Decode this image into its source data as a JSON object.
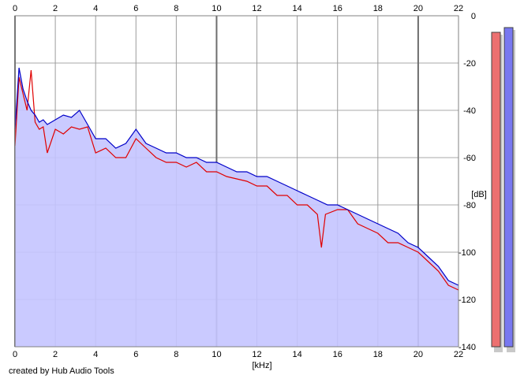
{
  "chart_data": {
    "type": "area",
    "title": "",
    "xlabel": "[kHz]",
    "ylabel": "[dB]",
    "xlim": [
      0,
      22
    ],
    "ylim": [
      -140,
      0
    ],
    "x_ticks": [
      0,
      2,
      4,
      6,
      8,
      10,
      12,
      14,
      16,
      18,
      20,
      22
    ],
    "x_tick_labels": [
      "0",
      "2",
      "4",
      "6",
      "8",
      "10",
      "12",
      "14",
      "16",
      "18",
      "20",
      "22"
    ],
    "y_ticks": [
      0,
      -20,
      -40,
      -60,
      -80,
      -100,
      -120,
      -140
    ],
    "y_tick_labels": [
      "0",
      "-20",
      "-40",
      "-60",
      "-80",
      "-100",
      "-120",
      "-140"
    ],
    "grid": true,
    "series": [
      {
        "color": "#e00000",
        "points": [
          [
            0,
            -55
          ],
          [
            0.2,
            -26
          ],
          [
            0.4,
            -33
          ],
          [
            0.6,
            -40
          ],
          [
            0.8,
            -23
          ],
          [
            1,
            -45
          ],
          [
            1.2,
            -48
          ],
          [
            1.4,
            -47
          ],
          [
            1.6,
            -58
          ],
          [
            2,
            -48
          ],
          [
            2.4,
            -50
          ],
          [
            2.8,
            -47
          ],
          [
            3.2,
            -48
          ],
          [
            3.6,
            -47
          ],
          [
            4,
            -58
          ],
          [
            4.5,
            -56
          ],
          [
            5,
            -60
          ],
          [
            5.5,
            -60
          ],
          [
            6,
            -52
          ],
          [
            6.5,
            -56
          ],
          [
            7,
            -60
          ],
          [
            7.5,
            -62
          ],
          [
            8,
            -62
          ],
          [
            8.5,
            -64
          ],
          [
            9,
            -62
          ],
          [
            9.5,
            -66
          ],
          [
            10,
            -66
          ],
          [
            10.5,
            -68
          ],
          [
            11,
            -69
          ],
          [
            11.5,
            -70
          ],
          [
            12,
            -72
          ],
          [
            12.5,
            -72
          ],
          [
            13,
            -76
          ],
          [
            13.5,
            -76
          ],
          [
            14,
            -80
          ],
          [
            14.5,
            -80
          ],
          [
            15,
            -84
          ],
          [
            15.2,
            -98
          ],
          [
            15.4,
            -84
          ],
          [
            16,
            -82
          ],
          [
            16.5,
            -82
          ],
          [
            17,
            -88
          ],
          [
            17.5,
            -90
          ],
          [
            18,
            -92
          ],
          [
            18.5,
            -96
          ],
          [
            19,
            -96
          ],
          [
            19.5,
            -98
          ],
          [
            20,
            -100
          ],
          [
            20.5,
            -104
          ],
          [
            21,
            -108
          ],
          [
            21.5,
            -114
          ],
          [
            22,
            -116
          ]
        ]
      },
      {
        "color": "#0000c8",
        "points": [
          [
            0,
            -48
          ],
          [
            0.2,
            -22
          ],
          [
            0.4,
            -31
          ],
          [
            0.6,
            -36
          ],
          [
            0.8,
            -40
          ],
          [
            1,
            -42
          ],
          [
            1.2,
            -45
          ],
          [
            1.4,
            -44
          ],
          [
            1.6,
            -46
          ],
          [
            2,
            -44
          ],
          [
            2.4,
            -42
          ],
          [
            2.8,
            -43
          ],
          [
            3.2,
            -40
          ],
          [
            3.6,
            -46
          ],
          [
            4,
            -52
          ],
          [
            4.5,
            -52
          ],
          [
            5,
            -56
          ],
          [
            5.5,
            -54
          ],
          [
            6,
            -48
          ],
          [
            6.5,
            -54
          ],
          [
            7,
            -56
          ],
          [
            7.5,
            -58
          ],
          [
            8,
            -58
          ],
          [
            8.5,
            -60
          ],
          [
            9,
            -60
          ],
          [
            9.5,
            -62
          ],
          [
            10,
            -62
          ],
          [
            10.5,
            -64
          ],
          [
            11,
            -66
          ],
          [
            11.5,
            -66
          ],
          [
            12,
            -68
          ],
          [
            12.5,
            -68
          ],
          [
            13,
            -70
          ],
          [
            13.5,
            -72
          ],
          [
            14,
            -74
          ],
          [
            14.5,
            -76
          ],
          [
            15,
            -78
          ],
          [
            15.5,
            -80
          ],
          [
            16,
            -80
          ],
          [
            16.5,
            -82
          ],
          [
            17,
            -84
          ],
          [
            17.5,
            -86
          ],
          [
            18,
            -88
          ],
          [
            18.5,
            -90
          ],
          [
            19,
            -92
          ],
          [
            19.5,
            -96
          ],
          [
            20,
            -98
          ],
          [
            20.5,
            -102
          ],
          [
            21,
            -106
          ],
          [
            21.5,
            -112
          ],
          [
            22,
            -114
          ]
        ]
      }
    ],
    "fill_color": "#c4c4ff",
    "level_meters": [
      {
        "color": "#ec7070",
        "level_db": -7
      },
      {
        "color": "#7878f0",
        "level_db": -5
      }
    ],
    "credit": "created by Hub Audio Tools"
  }
}
